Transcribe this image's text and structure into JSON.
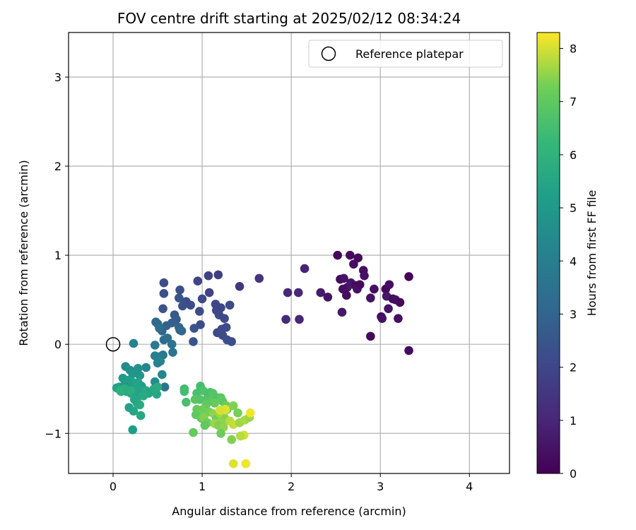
{
  "chart_data": {
    "type": "scatter",
    "title": "FOV centre drift starting at 2025/02/12 08:34:24",
    "xlabel": "Angular distance from reference (arcmin)",
    "ylabel": "Rotation from reference (arcmin)",
    "xlim": [
      -0.5,
      4.45
    ],
    "ylim": [
      -1.45,
      3.5
    ],
    "x_ticks": [
      0,
      1,
      2,
      3,
      4
    ],
    "y_ticks": [
      -1,
      0,
      1,
      2,
      3
    ],
    "grid": true,
    "legend": {
      "location": "top-right",
      "entries": [
        "Reference platepar"
      ]
    },
    "reference_point": {
      "x": 0,
      "y": 0,
      "label": "Reference platepar"
    },
    "colorbar": {
      "label": "Hours from first FF file",
      "colormap": "viridis",
      "range": [
        0,
        8.3
      ],
      "ticks": [
        0,
        1,
        2,
        3,
        4,
        5,
        6,
        7,
        8
      ]
    },
    "points": [
      [
        2.52,
        1.0,
        0.2
      ],
      [
        2.66,
        1.0,
        0.25
      ],
      [
        2.75,
        0.97,
        0.3
      ],
      [
        2.7,
        0.9,
        0.35
      ],
      [
        2.81,
        0.83,
        0.4
      ],
      [
        2.82,
        0.77,
        0.45
      ],
      [
        2.55,
        0.73,
        0.2
      ],
      [
        2.59,
        0.74,
        0.5
      ],
      [
        2.67,
        0.69,
        0.55
      ],
      [
        2.72,
        0.66,
        0.3
      ],
      [
        2.63,
        0.64,
        0.6
      ],
      [
        2.58,
        0.62,
        0.35
      ],
      [
        2.74,
        0.62,
        0.45
      ],
      [
        2.77,
        0.67,
        0.25
      ],
      [
        2.93,
        0.62,
        0.4
      ],
      [
        2.62,
        0.55,
        0.3
      ],
      [
        2.41,
        0.53,
        0.5
      ],
      [
        2.89,
        0.52,
        0.45
      ],
      [
        3.06,
        0.62,
        0.2
      ],
      [
        3.1,
        0.67,
        0.35
      ],
      [
        3.07,
        0.54,
        0.55
      ],
      [
        3.14,
        0.51,
        0.3
      ],
      [
        3.17,
        0.5,
        0.4
      ],
      [
        3.22,
        0.47,
        0.25
      ],
      [
        3.09,
        0.4,
        0.5
      ],
      [
        3.01,
        0.31,
        0.3
      ],
      [
        3.02,
        0.29,
        0.45
      ],
      [
        3.2,
        0.29,
        0.35
      ],
      [
        3.32,
        0.76,
        0.1
      ],
      [
        2.57,
        0.36,
        0.6
      ],
      [
        2.89,
        0.09,
        0.2
      ],
      [
        3.32,
        -0.07,
        0.3
      ],
      [
        2.33,
        0.58,
        0.7
      ],
      [
        2.15,
        0.85,
        0.9
      ],
      [
        1.96,
        0.58,
        1.0
      ],
      [
        2.08,
        0.58,
        1.05
      ],
      [
        1.94,
        0.28,
        1.1
      ],
      [
        2.09,
        0.28,
        1.0
      ],
      [
        1.64,
        0.74,
        1.4
      ],
      [
        1.42,
        0.65,
        1.5
      ],
      [
        1.07,
        0.77,
        1.85
      ],
      [
        1.18,
        0.78,
        1.75
      ],
      [
        0.95,
        0.71,
        1.95
      ],
      [
        1.08,
        0.58,
        1.9
      ],
      [
        1.0,
        0.51,
        2.05
      ],
      [
        1.21,
        0.41,
        2.0
      ],
      [
        1.31,
        0.44,
        2.1
      ],
      [
        1.16,
        0.38,
        1.95
      ],
      [
        1.19,
        0.33,
        2.15
      ],
      [
        1.25,
        0.29,
        2.1
      ],
      [
        0.97,
        0.37,
        2.2
      ],
      [
        0.87,
        0.44,
        2.25
      ],
      [
        0.82,
        0.48,
        2.2
      ],
      [
        0.78,
        0.43,
        2.35
      ],
      [
        0.74,
        0.52,
        2.4
      ],
      [
        0.75,
        0.61,
        2.3
      ],
      [
        0.57,
        0.69,
        2.2
      ],
      [
        0.57,
        0.57,
        2.3
      ],
      [
        0.56,
        0.4,
        2.45
      ],
      [
        0.69,
        0.33,
        2.6
      ],
      [
        0.71,
        0.28,
        2.7
      ],
      [
        0.66,
        0.24,
        2.8
      ],
      [
        0.6,
        0.21,
        2.9
      ],
      [
        0.55,
        0.15,
        3.0
      ],
      [
        0.98,
        0.22,
        2.25
      ],
      [
        0.91,
        0.18,
        2.4
      ],
      [
        1.17,
        0.13,
        2.05
      ],
      [
        1.22,
        0.17,
        2.2
      ],
      [
        1.27,
        0.19,
        2.1
      ],
      [
        1.23,
        0.1,
        2.15
      ],
      [
        1.28,
        0.05,
        2.3
      ],
      [
        1.33,
        0.03,
        2.2
      ],
      [
        1.15,
        0.45,
        2.0
      ],
      [
        0.9,
        0.03,
        2.4
      ],
      [
        0.48,
        0.25,
        3.1
      ],
      [
        0.5,
        0.23,
        3.2
      ],
      [
        0.52,
        0.18,
        3.3
      ],
      [
        0.75,
        0.16,
        2.9
      ],
      [
        0.74,
        0.19,
        3.0
      ],
      [
        0.77,
        0.15,
        3.1
      ],
      [
        0.57,
        0.05,
        3.3
      ],
      [
        0.61,
        0.07,
        3.4
      ],
      [
        0.66,
        0.0,
        3.5
      ],
      [
        0.67,
        -0.09,
        3.6
      ],
      [
        0.56,
        -0.12,
        3.7
      ],
      [
        0.52,
        -0.14,
        3.9
      ],
      [
        0.47,
        -0.01,
        3.8
      ],
      [
        0.47,
        -0.13,
        4.0
      ],
      [
        0.5,
        -0.21,
        4.1
      ],
      [
        0.53,
        -0.19,
        4.2
      ],
      [
        0.23,
        0.01,
        4.1
      ],
      [
        0.37,
        -0.26,
        4.3
      ],
      [
        0.58,
        -0.48,
        3.6
      ],
      [
        0.55,
        -0.34,
        4.3
      ],
      [
        0.47,
        -0.42,
        4.5
      ],
      [
        0.14,
        -0.25,
        4.5
      ],
      [
        0.19,
        -0.29,
        4.6
      ],
      [
        0.28,
        -0.27,
        4.7
      ],
      [
        0.22,
        -0.33,
        4.9
      ],
      [
        0.3,
        -0.35,
        4.8
      ],
      [
        0.11,
        -0.38,
        5.0
      ],
      [
        0.14,
        -0.41,
        5.1
      ],
      [
        0.18,
        -0.4,
        5.2
      ],
      [
        0.23,
        -0.43,
        5.3
      ],
      [
        0.28,
        -0.43,
        5.4
      ],
      [
        0.32,
        -0.47,
        5.2
      ],
      [
        0.25,
        -0.48,
        5.5
      ],
      [
        0.2,
        -0.47,
        5.3
      ],
      [
        0.16,
        -0.47,
        5.1
      ],
      [
        0.12,
        -0.47,
        5.0
      ],
      [
        0.07,
        -0.48,
        5.2
      ],
      [
        0.04,
        -0.49,
        5.4
      ],
      [
        0.09,
        -0.53,
        5.5
      ],
      [
        0.15,
        -0.53,
        5.6
      ],
      [
        0.2,
        -0.55,
        5.6
      ],
      [
        0.26,
        -0.52,
        5.5
      ],
      [
        0.3,
        -0.5,
        5.4
      ],
      [
        0.37,
        -0.52,
        5.6
      ],
      [
        0.4,
        -0.55,
        5.5
      ],
      [
        0.27,
        -0.6,
        5.4
      ],
      [
        0.27,
        -0.66,
        5.6
      ],
      [
        0.3,
        -0.68,
        5.7
      ],
      [
        0.24,
        -0.62,
        5.5
      ],
      [
        0.18,
        -0.71,
        5.3
      ],
      [
        0.23,
        -0.75,
        5.5
      ],
      [
        0.31,
        -0.8,
        5.6
      ],
      [
        0.22,
        -0.96,
        5.2
      ],
      [
        0.49,
        -0.56,
        5.5
      ],
      [
        0.13,
        -0.5,
        5.8
      ],
      [
        0.08,
        -0.52,
        5.9
      ],
      [
        0.46,
        -0.5,
        5.6
      ],
      [
        0.5,
        -0.48,
        5.7
      ],
      [
        0.2,
        -0.52,
        5.8
      ],
      [
        0.34,
        -0.58,
        5.7
      ],
      [
        0.8,
        -0.5,
        6.4
      ],
      [
        0.8,
        -0.53,
        6.5
      ],
      [
        0.82,
        -0.65,
        6.6
      ],
      [
        0.98,
        -0.47,
        6.5
      ],
      [
        1.01,
        -0.52,
        6.7
      ],
      [
        0.94,
        -0.55,
        6.6
      ],
      [
        0.92,
        -0.62,
        6.9
      ],
      [
        0.97,
        -0.62,
        6.8
      ],
      [
        1.06,
        -0.6,
        6.7
      ],
      [
        1.09,
        -0.54,
        6.6
      ],
      [
        1.12,
        -0.55,
        6.8
      ],
      [
        1.12,
        -0.62,
        6.9
      ],
      [
        1.17,
        -0.6,
        6.7
      ],
      [
        1.21,
        -0.6,
        6.9
      ],
      [
        1.23,
        -0.64,
        7.0
      ],
      [
        1.14,
        -0.66,
        7.1
      ],
      [
        1.27,
        -0.69,
        7.2
      ],
      [
        1.28,
        -0.73,
        7.3
      ],
      [
        1.35,
        -0.69,
        7.4
      ],
      [
        1.05,
        -0.67,
        7.0
      ],
      [
        1.01,
        -0.73,
        7.2
      ],
      [
        0.94,
        -0.73,
        7.1
      ],
      [
        0.96,
        -0.79,
        7.3
      ],
      [
        0.93,
        -0.79,
        7.0
      ],
      [
        0.99,
        -0.83,
        7.1
      ],
      [
        1.02,
        -0.82,
        7.4
      ],
      [
        1.06,
        -0.88,
        7.2
      ],
      [
        1.08,
        -0.76,
        7.3
      ],
      [
        1.13,
        -0.78,
        7.5
      ],
      [
        1.16,
        -0.84,
        7.2
      ],
      [
        1.2,
        -0.78,
        7.6
      ],
      [
        1.24,
        -0.8,
        7.7
      ],
      [
        1.26,
        -0.84,
        7.4
      ],
      [
        1.21,
        -0.87,
        7.5
      ],
      [
        1.14,
        -0.89,
        7.6
      ],
      [
        1.18,
        -0.91,
        7.4
      ],
      [
        1.24,
        -0.93,
        7.5
      ],
      [
        1.31,
        -0.86,
        7.8
      ],
      [
        1.35,
        -0.9,
        7.9
      ],
      [
        1.4,
        -0.77,
        7.3
      ],
      [
        1.42,
        -0.88,
        7.6
      ],
      [
        1.48,
        -0.85,
        7.7
      ],
      [
        1.53,
        -0.82,
        7.6
      ],
      [
        1.54,
        -0.77,
        8.2
      ],
      [
        1.47,
        -1.02,
        8.0
      ],
      [
        1.43,
        -1.03,
        7.8
      ],
      [
        1.33,
        -1.07,
        7.4
      ],
      [
        1.21,
        -1.0,
        7.2
      ],
      [
        1.03,
        -0.91,
        7.0
      ],
      [
        0.9,
        -0.99,
        7.1
      ],
      [
        1.35,
        -1.34,
        8.1
      ],
      [
        1.49,
        -1.34,
        8.2
      ],
      [
        1.26,
        -0.73,
        8.1
      ],
      [
        1.2,
        -0.74,
        8.0
      ]
    ]
  }
}
